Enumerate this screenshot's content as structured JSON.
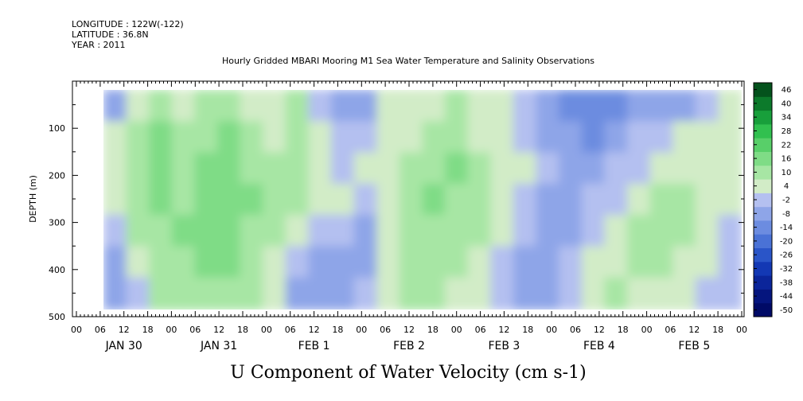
{
  "header": {
    "longitude": "LONGITUDE : 122W(-122)",
    "latitude": "LATITUDE : 36.8N",
    "year": "YEAR : 2011",
    "title": "Hourly Gridded MBARI Mooring M1 Sea Water Temperature and Salinity Observations"
  },
  "chart_data": {
    "type": "heatmap",
    "title": "U Component of Water Velocity (cm s-1)",
    "xlabel": "",
    "ylabel": "DEPTH (m)",
    "ylim": [
      500,
      0
    ],
    "data_depth_range": [
      20,
      485
    ],
    "y_ticks": [
      100,
      200,
      300,
      400,
      500
    ],
    "y_tick_labels": [
      "100",
      "200",
      "300",
      "400",
      "500"
    ],
    "x_hour_labels": [
      "00",
      "06",
      "12",
      "18",
      "00",
      "06",
      "12",
      "18",
      "00",
      "06",
      "12",
      "18",
      "00",
      "06",
      "12",
      "18",
      "00",
      "06",
      "12",
      "18",
      "00",
      "06",
      "12",
      "18",
      "00",
      "06",
      "12",
      "18",
      "00"
    ],
    "x_day_labels": [
      "JAN 30",
      "JAN 31",
      "FEB  1",
      "FEB  2",
      "FEB  3",
      "FEB  4",
      "FEB  5"
    ],
    "x_range_hours": [
      0,
      168
    ],
    "data_start_hour": 7,
    "colorbar_levels": [
      -50,
      -44,
      -38,
      -32,
      -26,
      -20,
      -14,
      -8,
      -2,
      4,
      10,
      16,
      22,
      28,
      34,
      40,
      46
    ],
    "colorbar_colors": [
      "#000a66",
      "#05157e",
      "#0b259a",
      "#1338b4",
      "#2a55c8",
      "#4a72d6",
      "#6c8ce0",
      "#8ea5e8",
      "#b4c0f0",
      "#d2ecc7",
      "#a7e6a4",
      "#7fdc86",
      "#58cf69",
      "#31c04f",
      "#189f3b",
      "#0c7a2b",
      "#04521c"
    ],
    "value_grid": [
      [
        -8,
        6,
        10,
        4,
        12,
        14,
        8,
        6,
        10,
        2,
        -6,
        -4,
        4,
        6,
        8,
        10,
        6,
        4,
        -2,
        -6,
        -10,
        -14,
        -12,
        -8,
        -6,
        -4,
        2,
        6
      ],
      [
        4,
        12,
        16,
        10,
        14,
        18,
        12,
        8,
        14,
        6,
        -2,
        2,
        6,
        8,
        12,
        14,
        8,
        6,
        2,
        -4,
        -8,
        -10,
        -6,
        -2,
        2,
        4,
        6,
        8
      ],
      [
        8,
        14,
        18,
        12,
        16,
        20,
        14,
        10,
        12,
        8,
        2,
        4,
        8,
        10,
        14,
        16,
        10,
        8,
        4,
        -2,
        -4,
        -6,
        -2,
        2,
        6,
        8,
        8,
        6
      ],
      [
        6,
        12,
        16,
        14,
        18,
        20,
        16,
        12,
        10,
        6,
        4,
        2,
        6,
        12,
        16,
        14,
        12,
        8,
        2,
        -4,
        -6,
        -2,
        2,
        6,
        10,
        12,
        8,
        4
      ],
      [
        2,
        10,
        14,
        16,
        18,
        18,
        14,
        10,
        6,
        2,
        -2,
        -4,
        4,
        10,
        14,
        12,
        10,
        6,
        -2,
        -6,
        -4,
        2,
        6,
        10,
        12,
        10,
        6,
        2
      ],
      [
        -4,
        6,
        12,
        14,
        16,
        16,
        12,
        8,
        2,
        -6,
        -8,
        -4,
        6,
        12,
        14,
        10,
        8,
        2,
        -6,
        -8,
        -2,
        4,
        8,
        12,
        10,
        8,
        4,
        0
      ],
      [
        -6,
        2,
        10,
        12,
        14,
        14,
        10,
        4,
        -4,
        -8,
        -6,
        2,
        8,
        10,
        12,
        8,
        4,
        -2,
        -8,
        -6,
        2,
        6,
        10,
        8,
        6,
        4,
        2,
        -2
      ]
    ]
  },
  "colorbar": {
    "labels": [
      "46",
      "40",
      "34",
      "28",
      "22",
      "16",
      "10",
      "4",
      "-2",
      "-8",
      "-14",
      "-20",
      "-26",
      "-32",
      "-38",
      "-44",
      "-50"
    ]
  }
}
